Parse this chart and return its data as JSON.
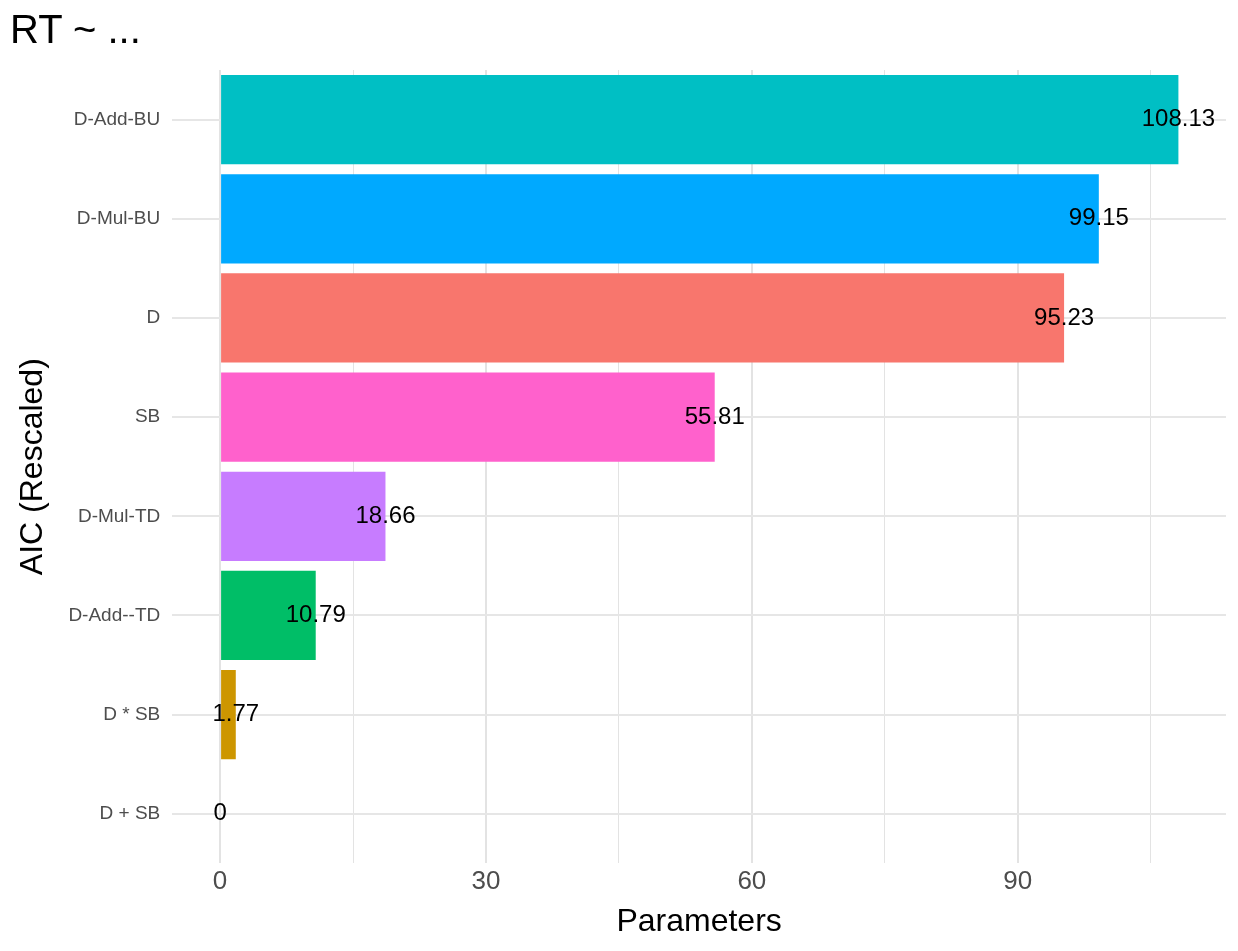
{
  "chart_data": {
    "type": "bar",
    "orientation": "horizontal",
    "title": "RT ~ ...",
    "xlabel": "Parameters",
    "ylabel": "AIC (Rescaled)",
    "categories": [
      "D-Add-BU",
      "D-Mul-BU",
      "D",
      "SB",
      "D-Mul-TD",
      "D-Add--TD",
      "D * SB",
      "D + SB"
    ],
    "values": [
      108.13,
      99.15,
      95.23,
      55.81,
      18.66,
      10.79,
      1.77,
      0
    ],
    "colors": [
      "#00bfc4",
      "#00a9ff",
      "#f8766d",
      "#ff61cc",
      "#c77cff",
      "#00be67",
      "#cd9600",
      "#7cae00"
    ],
    "xlim": [
      -5.4,
      113.5
    ],
    "xticks": [
      0,
      {
        "value": 15,
        "label": null
      },
      30,
      {
        "value": 45,
        "label": null
      },
      60,
      {
        "value": 75,
        "label": null
      },
      90,
      {
        "value": 105,
        "label": null
      }
    ],
    "grid": true,
    "legend": false,
    "data_labels": true
  }
}
